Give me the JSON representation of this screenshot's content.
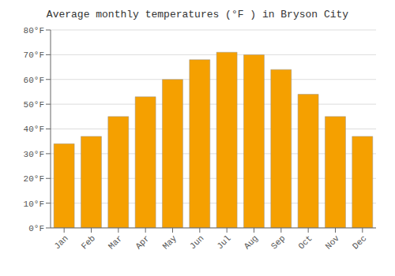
{
  "chart_data": {
    "type": "bar",
    "title": "Average monthly temperatures (°F ) in Bryson City",
    "categories": [
      "Jan",
      "Feb",
      "Mar",
      "Apr",
      "May",
      "Jun",
      "Jul",
      "Aug",
      "Sep",
      "Oct",
      "Nov",
      "Dec"
    ],
    "values": [
      34,
      37,
      45,
      53,
      60,
      68,
      71,
      70,
      64,
      54,
      45,
      37
    ],
    "color": "#F5A000",
    "ylim": [
      0,
      80
    ],
    "yticks": [
      {
        "value": 0,
        "label": "0°F"
      },
      {
        "value": 10,
        "label": "10°F"
      },
      {
        "value": 20,
        "label": "20°F"
      },
      {
        "value": 30,
        "label": "30°F"
      },
      {
        "value": 40,
        "label": "40°F"
      },
      {
        "value": 50,
        "label": "50°F"
      },
      {
        "value": 60,
        "label": "60°F"
      },
      {
        "value": 70,
        "label": "70°F"
      },
      {
        "value": 80,
        "label": "80°F"
      }
    ],
    "grid": true
  }
}
